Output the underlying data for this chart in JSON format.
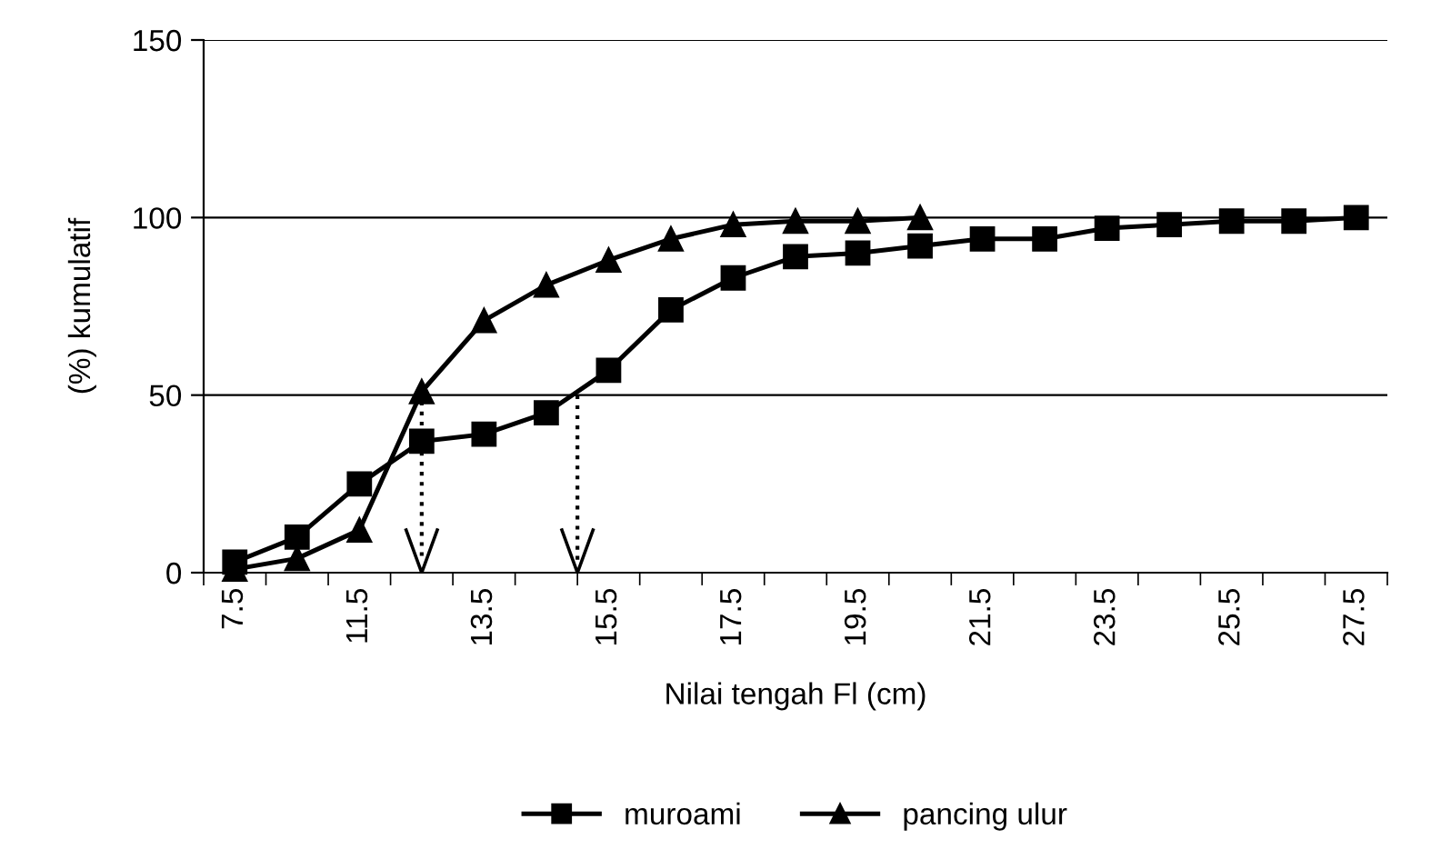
{
  "chart_data": {
    "type": "line",
    "xlabel": "Nilai tengah Fl (cm)",
    "ylabel": "(%) kumulatif",
    "categories": [
      "7.5",
      null,
      "11.5",
      null,
      "13.5",
      null,
      "15.5",
      null,
      "17.5",
      null,
      "19.5",
      null,
      "21.5",
      null,
      "23.5",
      null,
      "25.5",
      null,
      "27.5"
    ],
    "series": [
      {
        "name": "muroami",
        "color": "#000000",
        "marker": "square",
        "values": [
          3,
          10,
          25,
          37,
          39,
          45,
          57,
          74,
          83,
          89,
          90,
          92,
          94,
          94,
          97,
          98,
          99,
          99,
          100
        ]
      },
      {
        "name": "pancing ulur",
        "color": "#000000",
        "marker": "triangle",
        "values": [
          1,
          4,
          12,
          51,
          71,
          81,
          88,
          94,
          98,
          99,
          99,
          100,
          null,
          null,
          null,
          null,
          null,
          null,
          null
        ]
      }
    ],
    "ylim": [
      0,
      150
    ],
    "yticks": [
      0,
      50,
      100,
      150
    ],
    "grid": "y",
    "legend": "bottom",
    "line_style": "solid"
  }
}
